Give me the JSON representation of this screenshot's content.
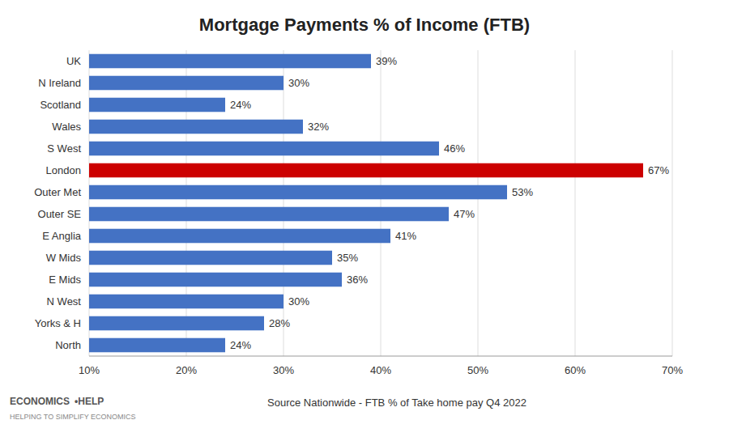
{
  "chart_data": {
    "type": "bar",
    "orientation": "horizontal",
    "title": "Mortgage Payments % of Income (FTB)",
    "categories": [
      "UK",
      "N Ireland",
      "Scotland",
      "Wales",
      "S West",
      "London",
      "Outer Met",
      "Outer SE",
      "E Anglia",
      "W Mids",
      "E Mids",
      "N West",
      "Yorks & H",
      "North"
    ],
    "values": [
      39,
      30,
      24,
      32,
      46,
      67,
      53,
      47,
      41,
      35,
      36,
      30,
      28,
      24
    ],
    "value_labels": [
      "39%",
      "30%",
      "24%",
      "32%",
      "46%",
      "67%",
      "53%",
      "47%",
      "41%",
      "35%",
      "36%",
      "30%",
      "28%",
      "24%"
    ],
    "data_labels": true,
    "colors": [
      "#4472c4",
      "#4472c4",
      "#4472c4",
      "#4472c4",
      "#4472c4",
      "#cc0000",
      "#4472c4",
      "#4472c4",
      "#4472c4",
      "#4472c4",
      "#4472c4",
      "#4472c4",
      "#4472c4",
      "#4472c4"
    ],
    "xlim": [
      10,
      70
    ],
    "xticks": [
      {
        "value": 10,
        "label": "10%"
      },
      {
        "value": 20,
        "label": "20%"
      },
      {
        "value": 30,
        "label": "30%"
      },
      {
        "value": 40,
        "label": "40%"
      },
      {
        "value": 50,
        "label": "50%"
      },
      {
        "value": 60,
        "label": "60%"
      },
      {
        "value": 70,
        "label": "70%"
      }
    ],
    "grid": true,
    "annotations": [
      "Source Nationwide - FTB % of Take home pay Q4 2022",
      "ECONOMICS",
      "•HELP",
      "HELPING TO SIMPLIFY ECONOMICS"
    ]
  }
}
